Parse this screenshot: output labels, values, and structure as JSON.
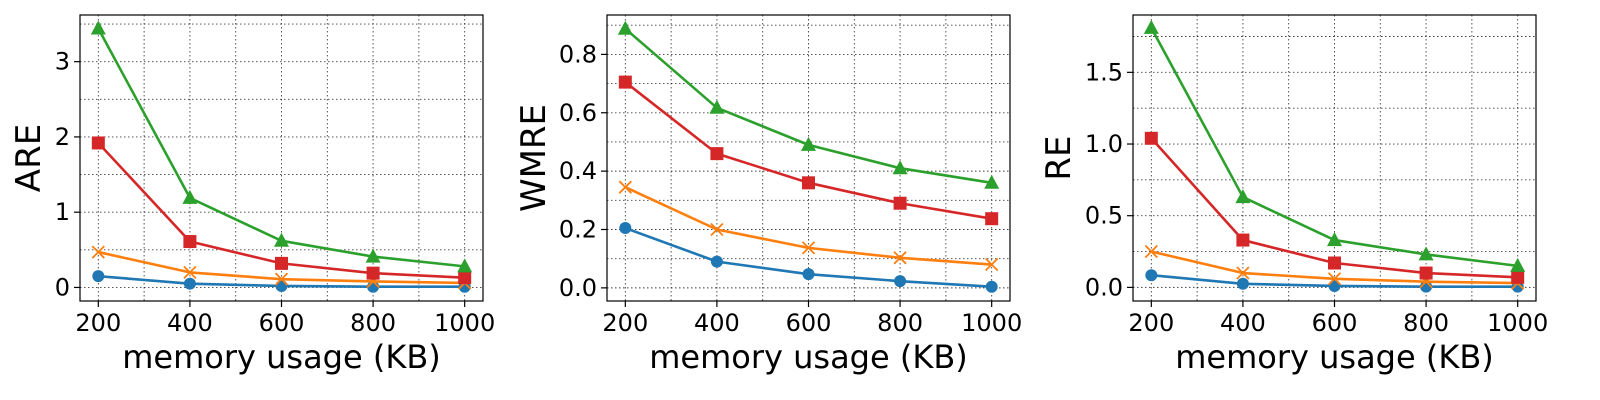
{
  "chart_data": [
    {
      "type": "line",
      "ylabel": "ARE",
      "xlabel": "memory usage (KB)",
      "x": [
        200,
        400,
        600,
        800,
        1000
      ],
      "xticks": [
        200,
        400,
        600,
        800,
        1000
      ],
      "xlim": [
        160,
        1040
      ],
      "ylim": [
        -0.18,
        3.62
      ],
      "yticks": [
        0,
        1,
        2,
        3
      ],
      "ytick_labels": [
        "0",
        "1",
        "2",
        "3"
      ],
      "grid": true,
      "series": [
        {
          "color": "#1f77b4",
          "marker": "circle",
          "values": [
            0.15,
            0.05,
            0.02,
            0.01,
            0.01
          ]
        },
        {
          "color": "#ff7f0e",
          "marker": "x",
          "values": [
            0.47,
            0.2,
            0.11,
            0.08,
            0.06
          ]
        },
        {
          "color": "#d62728",
          "marker": "square",
          "values": [
            1.92,
            0.61,
            0.32,
            0.19,
            0.13
          ]
        },
        {
          "color": "#2ca02c",
          "marker": "triangle",
          "values": [
            3.44,
            1.19,
            0.62,
            0.41,
            0.28
          ]
        }
      ]
    },
    {
      "type": "line",
      "ylabel": "WMRE",
      "xlabel": "memory usage (KB)",
      "x": [
        200,
        400,
        600,
        800,
        1000
      ],
      "xticks": [
        200,
        400,
        600,
        800,
        1000
      ],
      "xlim": [
        160,
        1040
      ],
      "ylim": [
        -0.045,
        0.935
      ],
      "yticks": [
        0.0,
        0.2,
        0.4,
        0.6,
        0.8
      ],
      "ytick_labels": [
        "0.0",
        "0.2",
        "0.4",
        "0.6",
        "0.8"
      ],
      "grid": true,
      "series": [
        {
          "color": "#1f77b4",
          "marker": "circle",
          "values": [
            0.205,
            0.09,
            0.047,
            0.023,
            0.004
          ]
        },
        {
          "color": "#ff7f0e",
          "marker": "x",
          "values": [
            0.345,
            0.2,
            0.137,
            0.103,
            0.08
          ]
        },
        {
          "color": "#d62728",
          "marker": "square",
          "values": [
            0.705,
            0.46,
            0.36,
            0.29,
            0.237
          ]
        },
        {
          "color": "#2ca02c",
          "marker": "triangle",
          "values": [
            0.888,
            0.617,
            0.49,
            0.41,
            0.36
          ]
        }
      ]
    },
    {
      "type": "line",
      "ylabel": "RE",
      "xlabel": "memory usage (KB)",
      "x": [
        200,
        400,
        600,
        800,
        1000
      ],
      "xticks": [
        200,
        400,
        600,
        800,
        1000
      ],
      "xlim": [
        160,
        1040
      ],
      "ylim": [
        -0.095,
        1.9
      ],
      "yticks": [
        0.0,
        0.5,
        1.0,
        1.5
      ],
      "ytick_labels": [
        "0.0",
        "0.5",
        "1.0",
        "1.5"
      ],
      "grid": true,
      "series": [
        {
          "color": "#1f77b4",
          "marker": "circle",
          "values": [
            0.085,
            0.025,
            0.01,
            0.005,
            0.005
          ]
        },
        {
          "color": "#ff7f0e",
          "marker": "x",
          "values": [
            0.25,
            0.1,
            0.06,
            0.04,
            0.03
          ]
        },
        {
          "color": "#d62728",
          "marker": "square",
          "values": [
            1.04,
            0.33,
            0.17,
            0.1,
            0.07
          ]
        },
        {
          "color": "#2ca02c",
          "marker": "triangle",
          "values": [
            1.81,
            0.63,
            0.33,
            0.23,
            0.15
          ]
        }
      ]
    }
  ]
}
